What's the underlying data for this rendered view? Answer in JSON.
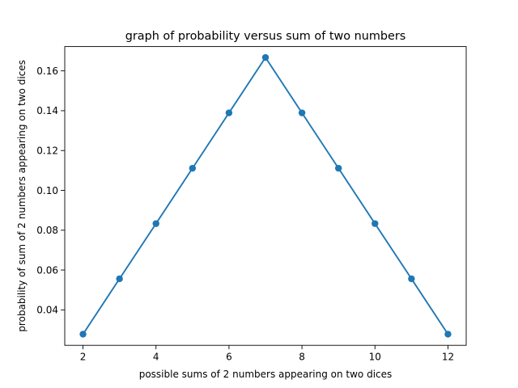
{
  "chart_data": {
    "type": "line",
    "title": "graph of probability versus sum of two numbers",
    "xlabel": "possible sums of 2 numbers appearing on two dices",
    "ylabel": "probability of sum of 2 numbers appearing on two dices",
    "xlim": [
      1.5,
      12.5
    ],
    "ylim": [
      0.0222,
      0.1722
    ],
    "xticks": [
      2,
      4,
      6,
      8,
      10,
      12
    ],
    "xtick_labels": [
      "2",
      "4",
      "6",
      "8",
      "10",
      "12"
    ],
    "yticks": [
      0.04,
      0.06,
      0.08,
      0.1,
      0.12,
      0.14,
      0.16
    ],
    "ytick_labels": [
      "0.04",
      "0.06",
      "0.08",
      "0.10",
      "0.12",
      "0.14",
      "0.16"
    ],
    "grid": false,
    "marker": "circle",
    "series": [
      {
        "color": "#1f77b4",
        "x": [
          2,
          3,
          4,
          5,
          6,
          7,
          8,
          9,
          10,
          11,
          12
        ],
        "y": [
          0.0278,
          0.0556,
          0.0833,
          0.1111,
          0.1389,
          0.1667,
          0.1389,
          0.1111,
          0.0833,
          0.0556,
          0.0278
        ]
      }
    ]
  }
}
